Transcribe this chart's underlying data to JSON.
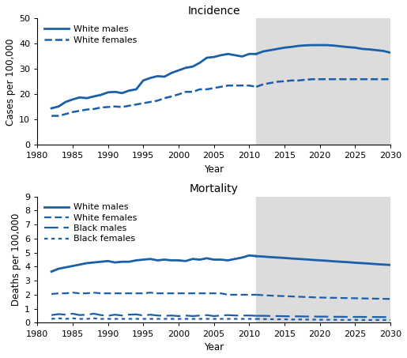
{
  "incidence": {
    "title": "Incidence",
    "ylabel": "Cases per 100,000",
    "xlabel": "Year",
    "ylim": [
      0,
      50
    ],
    "yticks": [
      0,
      10,
      20,
      30,
      40,
      50
    ],
    "xlim": [
      1980,
      2030
    ],
    "xticks": [
      1980,
      1985,
      1990,
      1995,
      2000,
      2005,
      2010,
      2015,
      2020,
      2025,
      2030
    ],
    "projection_start": 2011,
    "white_males_obs": {
      "years": [
        1982,
        1983,
        1984,
        1985,
        1986,
        1987,
        1988,
        1989,
        1990,
        1991,
        1992,
        1993,
        1994,
        1995,
        1996,
        1997,
        1998,
        1999,
        2000,
        2001,
        2002,
        2003,
        2004,
        2005,
        2006,
        2007,
        2008,
        2009,
        2010,
        2011
      ],
      "values": [
        14.5,
        15.2,
        17.0,
        18.0,
        18.8,
        18.5,
        19.2,
        19.8,
        20.8,
        21.0,
        20.5,
        21.5,
        22.0,
        25.5,
        26.5,
        27.2,
        27.0,
        28.5,
        29.5,
        30.5,
        31.0,
        32.5,
        34.5,
        34.8,
        35.5,
        36.0,
        35.5,
        35.0,
        36.0,
        36.0
      ]
    },
    "white_males_proj": {
      "years": [
        2011,
        2012,
        2013,
        2014,
        2015,
        2016,
        2017,
        2018,
        2019,
        2020,
        2021,
        2022,
        2023,
        2024,
        2025,
        2026,
        2027,
        2028,
        2029,
        2030
      ],
      "values": [
        36.0,
        37.0,
        37.5,
        38.0,
        38.5,
        38.8,
        39.2,
        39.4,
        39.5,
        39.5,
        39.5,
        39.3,
        39.0,
        38.7,
        38.5,
        38.0,
        37.8,
        37.5,
        37.2,
        36.5
      ]
    },
    "white_females_obs": {
      "years": [
        1982,
        1983,
        1984,
        1985,
        1986,
        1987,
        1988,
        1989,
        1990,
        1991,
        1992,
        1993,
        1994,
        1995,
        1996,
        1997,
        1998,
        1999,
        2000,
        2001,
        2002,
        2003,
        2004,
        2005,
        2006,
        2007,
        2008,
        2009,
        2010,
        2011
      ],
      "values": [
        11.5,
        11.5,
        12.2,
        13.0,
        13.5,
        14.0,
        14.2,
        14.8,
        15.0,
        15.2,
        15.0,
        15.5,
        16.0,
        16.5,
        17.0,
        17.5,
        18.5,
        19.2,
        20.0,
        21.0,
        21.0,
        22.0,
        22.0,
        22.5,
        23.0,
        23.5,
        23.5,
        23.5,
        23.5,
        23.0
      ]
    },
    "white_females_proj": {
      "years": [
        2011,
        2012,
        2013,
        2014,
        2015,
        2016,
        2017,
        2018,
        2019,
        2020,
        2021,
        2022,
        2023,
        2024,
        2025,
        2026,
        2027,
        2028,
        2029,
        2030
      ],
      "values": [
        23.0,
        24.0,
        24.5,
        25.0,
        25.2,
        25.5,
        25.5,
        25.8,
        26.0,
        26.0,
        26.0,
        26.0,
        26.0,
        26.0,
        26.0,
        26.0,
        26.0,
        26.0,
        26.0,
        26.0
      ]
    }
  },
  "mortality": {
    "title": "Mortality",
    "ylabel": "Deaths per 100,000",
    "xlabel": "Year",
    "ylim": [
      0,
      9
    ],
    "yticks": [
      0,
      1,
      2,
      3,
      4,
      5,
      6,
      7,
      8,
      9
    ],
    "xlim": [
      1980,
      2030
    ],
    "xticks": [
      1980,
      1985,
      1990,
      1995,
      2000,
      2005,
      2010,
      2015,
      2020,
      2025,
      2030
    ],
    "projection_start": 2011,
    "white_males_obs": {
      "years": [
        1982,
        1983,
        1984,
        1985,
        1986,
        1987,
        1988,
        1989,
        1990,
        1991,
        1992,
        1993,
        1994,
        1995,
        1996,
        1997,
        1998,
        1999,
        2000,
        2001,
        2002,
        2003,
        2004,
        2005,
        2006,
        2007,
        2008,
        2009,
        2010,
        2011
      ],
      "values": [
        3.65,
        3.85,
        3.95,
        4.05,
        4.15,
        4.25,
        4.3,
        4.35,
        4.4,
        4.3,
        4.35,
        4.35,
        4.45,
        4.5,
        4.55,
        4.45,
        4.5,
        4.45,
        4.45,
        4.4,
        4.55,
        4.5,
        4.6,
        4.5,
        4.5,
        4.45,
        4.55,
        4.65,
        4.8,
        4.75
      ]
    },
    "white_males_proj": {
      "years": [
        2011,
        2012,
        2013,
        2014,
        2015,
        2016,
        2017,
        2018,
        2019,
        2020,
        2021,
        2022,
        2023,
        2024,
        2025,
        2026,
        2027,
        2028,
        2029,
        2030
      ],
      "values": [
        4.75,
        4.72,
        4.68,
        4.65,
        4.62,
        4.58,
        4.55,
        4.52,
        4.48,
        4.45,
        4.42,
        4.38,
        4.35,
        4.32,
        4.28,
        4.25,
        4.22,
        4.18,
        4.15,
        4.12
      ]
    },
    "white_females_obs": {
      "years": [
        1982,
        1983,
        1984,
        1985,
        1986,
        1987,
        1988,
        1989,
        1990,
        1991,
        1992,
        1993,
        1994,
        1995,
        1996,
        1997,
        1998,
        1999,
        2000,
        2001,
        2002,
        2003,
        2004,
        2005,
        2006,
        2007,
        2008,
        2009,
        2010,
        2011
      ],
      "values": [
        2.05,
        2.1,
        2.1,
        2.15,
        2.1,
        2.1,
        2.15,
        2.1,
        2.1,
        2.1,
        2.1,
        2.1,
        2.1,
        2.1,
        2.15,
        2.1,
        2.1,
        2.1,
        2.1,
        2.1,
        2.1,
        2.1,
        2.1,
        2.1,
        2.1,
        2.0,
        2.0,
        2.0,
        2.0,
        2.0
      ]
    },
    "white_females_proj": {
      "years": [
        2011,
        2012,
        2013,
        2014,
        2015,
        2016,
        2017,
        2018,
        2019,
        2020,
        2021,
        2022,
        2023,
        2024,
        2025,
        2026,
        2027,
        2028,
        2029,
        2030
      ],
      "values": [
        2.0,
        1.97,
        1.94,
        1.92,
        1.9,
        1.88,
        1.86,
        1.84,
        1.82,
        1.8,
        1.79,
        1.78,
        1.77,
        1.76,
        1.75,
        1.74,
        1.73,
        1.72,
        1.71,
        1.7
      ]
    },
    "black_males_obs": {
      "years": [
        1982,
        1983,
        1984,
        1985,
        1986,
        1987,
        1988,
        1989,
        1990,
        1991,
        1992,
        1993,
        1994,
        1995,
        1996,
        1997,
        1998,
        1999,
        2000,
        2001,
        2002,
        2003,
        2004,
        2005,
        2006,
        2007,
        2008,
        2009,
        2010,
        2011
      ],
      "values": [
        0.55,
        0.62,
        0.58,
        0.65,
        0.55,
        0.58,
        0.65,
        0.55,
        0.5,
        0.58,
        0.52,
        0.58,
        0.6,
        0.52,
        0.58,
        0.52,
        0.5,
        0.52,
        0.48,
        0.52,
        0.48,
        0.52,
        0.55,
        0.48,
        0.52,
        0.55,
        0.52,
        0.52,
        0.52,
        0.5
      ]
    },
    "black_males_proj": {
      "years": [
        2011,
        2012,
        2013,
        2014,
        2015,
        2016,
        2017,
        2018,
        2019,
        2020,
        2021,
        2022,
        2023,
        2024,
        2025,
        2026,
        2027,
        2028,
        2029,
        2030
      ],
      "values": [
        0.5,
        0.5,
        0.49,
        0.48,
        0.47,
        0.46,
        0.46,
        0.45,
        0.45,
        0.44,
        0.44,
        0.43,
        0.43,
        0.42,
        0.42,
        0.42,
        0.41,
        0.41,
        0.41,
        0.4
      ]
    },
    "black_females_obs": {
      "years": [
        1982,
        1983,
        1984,
        1985,
        1986,
        1987,
        1988,
        1989,
        1990,
        1991,
        1992,
        1993,
        1994,
        1995,
        1996,
        1997,
        1998,
        1999,
        2000,
        2001,
        2002,
        2003,
        2004,
        2005,
        2006,
        2007,
        2008,
        2009,
        2010,
        2011
      ],
      "values": [
        0.28,
        0.32,
        0.28,
        0.32,
        0.28,
        0.28,
        0.32,
        0.28,
        0.28,
        0.28,
        0.28,
        0.28,
        0.28,
        0.28,
        0.28,
        0.28,
        0.28,
        0.28,
        0.28,
        0.28,
        0.28,
        0.28,
        0.28,
        0.28,
        0.28,
        0.28,
        0.28,
        0.28,
        0.28,
        0.28
      ]
    },
    "black_females_proj": {
      "years": [
        2011,
        2012,
        2013,
        2014,
        2015,
        2016,
        2017,
        2018,
        2019,
        2020,
        2021,
        2022,
        2023,
        2024,
        2025,
        2026,
        2027,
        2028,
        2029,
        2030
      ],
      "values": [
        0.28,
        0.27,
        0.26,
        0.25,
        0.25,
        0.24,
        0.24,
        0.23,
        0.23,
        0.22,
        0.22,
        0.22,
        0.21,
        0.21,
        0.21,
        0.2,
        0.2,
        0.2,
        0.2,
        0.2
      ]
    }
  },
  "line_color": "#1a5fa8",
  "projection_bg": "#dcdcdc",
  "title_fontsize": 10,
  "label_fontsize": 8.5,
  "tick_fontsize": 8,
  "legend_fontsize": 8
}
